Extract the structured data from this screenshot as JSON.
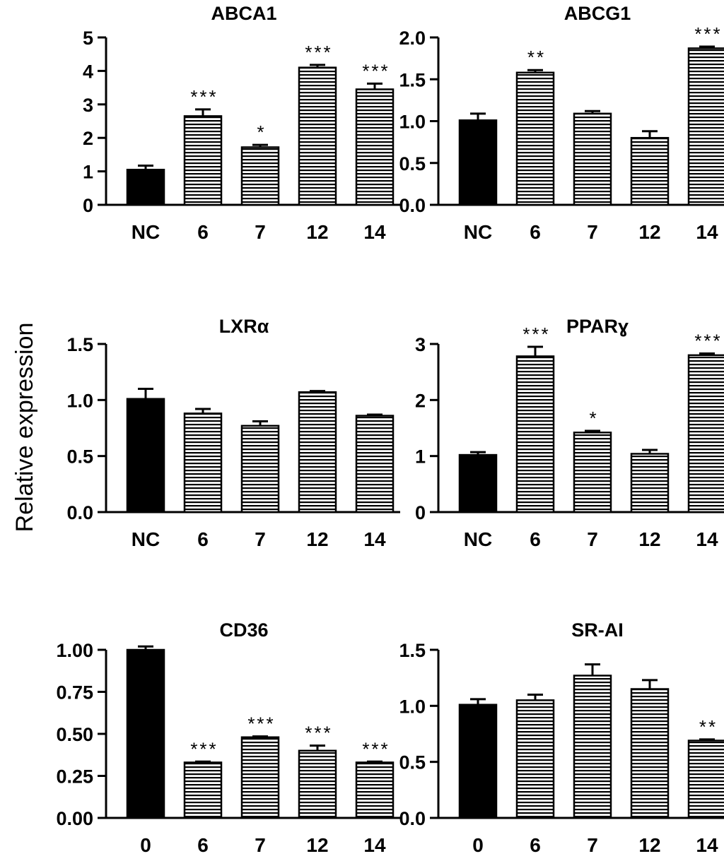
{
  "figure": {
    "ylabel": "Relative expression",
    "colors": {
      "control": "#000000",
      "treated_stripe": "#000000",
      "background": "#ffffff"
    }
  },
  "chart_data": [
    {
      "type": "bar",
      "title": "ABCA1",
      "categories": [
        "NC",
        "6",
        "7",
        "12",
        "14"
      ],
      "values": [
        1.05,
        2.65,
        1.72,
        4.1,
        3.45
      ],
      "errors": [
        0.12,
        0.2,
        0.07,
        0.08,
        0.17
      ],
      "significance": [
        "",
        "***",
        "*",
        "***",
        "***"
      ],
      "ylim": [
        0,
        5
      ],
      "yticks": [
        "0",
        "1",
        "2",
        "3",
        "4",
        "5"
      ],
      "ytick_values": [
        0,
        1,
        2,
        3,
        4,
        5
      ]
    },
    {
      "type": "bar",
      "title": "ABCG1",
      "categories": [
        "NC",
        "6",
        "7",
        "12",
        "14"
      ],
      "values": [
        1.01,
        1.58,
        1.09,
        0.8,
        1.87
      ],
      "errors": [
        0.08,
        0.03,
        0.03,
        0.08,
        0.02
      ],
      "significance": [
        "",
        "**",
        "",
        "",
        "***"
      ],
      "ylim": [
        0,
        2
      ],
      "yticks": [
        "0.0",
        "0.5",
        "1.0",
        "1.5",
        "2.0"
      ],
      "ytick_values": [
        0,
        0.5,
        1.0,
        1.5,
        2.0
      ]
    },
    {
      "type": "bar",
      "title": "LXRα",
      "categories": [
        "NC",
        "6",
        "7",
        "12",
        "14"
      ],
      "values": [
        1.01,
        0.88,
        0.77,
        1.07,
        0.86
      ],
      "errors": [
        0.09,
        0.04,
        0.04,
        0.01,
        0.01
      ],
      "significance": [
        "",
        "",
        "",
        "",
        ""
      ],
      "ylim": [
        0,
        1.5
      ],
      "yticks": [
        "0.0",
        "0.5",
        "1.0",
        "1.5"
      ],
      "ytick_values": [
        0,
        0.5,
        1.0,
        1.5
      ]
    },
    {
      "type": "bar",
      "title": "PPARɣ",
      "categories": [
        "NC",
        "6",
        "7",
        "12",
        "14"
      ],
      "values": [
        1.02,
        2.78,
        1.42,
        1.04,
        2.8
      ],
      "errors": [
        0.05,
        0.17,
        0.03,
        0.07,
        0.03
      ],
      "significance": [
        "",
        "***",
        "*",
        "",
        "***"
      ],
      "ylim": [
        0,
        3
      ],
      "yticks": [
        "0",
        "1",
        "2",
        "3"
      ],
      "ytick_values": [
        0,
        1,
        2,
        3
      ]
    },
    {
      "type": "bar",
      "title": "CD36",
      "categories": [
        "0",
        "6",
        "7",
        "12",
        "14"
      ],
      "values": [
        1.0,
        0.33,
        0.48,
        0.4,
        0.33
      ],
      "errors": [
        0.02,
        0.005,
        0.005,
        0.03,
        0.005
      ],
      "significance": [
        "",
        "***",
        "***",
        "***",
        "***"
      ],
      "ylim": [
        0,
        1
      ],
      "yticks": [
        "0.00",
        "0.25",
        "0.50",
        "0.75",
        "1.00"
      ],
      "ytick_values": [
        0,
        0.25,
        0.5,
        0.75,
        1.0
      ]
    },
    {
      "type": "bar",
      "title": "SR-AI",
      "categories": [
        "0",
        "6",
        "7",
        "12",
        "14"
      ],
      "values": [
        1.01,
        1.05,
        1.27,
        1.15,
        0.69
      ],
      "errors": [
        0.05,
        0.05,
        0.1,
        0.08,
        0.01
      ],
      "significance": [
        "",
        "",
        "",
        "",
        "**"
      ],
      "ylim": [
        0,
        1.5
      ],
      "yticks": [
        "0.0",
        "0.5",
        "1.0",
        "1.5"
      ],
      "ytick_values": [
        0,
        0.5,
        1.0,
        1.5
      ]
    }
  ]
}
